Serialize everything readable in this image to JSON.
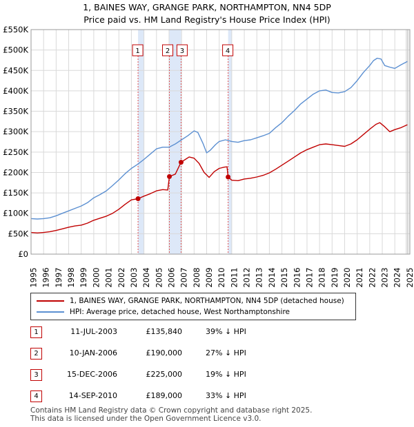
{
  "title_line1": "1, BAINES WAY, GRANGE PARK, NORTHAMPTON, NN4 5DP",
  "title_line2": "Price paid vs. HM Land Registry's House Price Index (HPI)",
  "colors": {
    "property": "#c00000",
    "hpi": "#5b8fd1",
    "sale_band": "#dde8f8",
    "marker_line": "#e05050"
  },
  "chart_data": {
    "type": "line",
    "ylim": [
      0,
      550000
    ],
    "xlim": [
      1995.0,
      2025.2
    ],
    "yticks": [
      0,
      50000,
      100000,
      150000,
      200000,
      250000,
      300000,
      350000,
      400000,
      450000,
      500000,
      550000
    ],
    "ytick_labels": [
      "£0",
      "£50K",
      "£100K",
      "£150K",
      "£200K",
      "£250K",
      "£300K",
      "£350K",
      "£400K",
      "£450K",
      "£500K",
      "£550K"
    ],
    "xtick_labels": [
      "1995",
      "1996",
      "1997",
      "1998",
      "1999",
      "2000",
      "2001",
      "2002",
      "2003",
      "2004",
      "2005",
      "2006",
      "2007",
      "2008",
      "2009",
      "2010",
      "2011",
      "2012",
      "2013",
      "2014",
      "2015",
      "2016",
      "2017",
      "2018",
      "2019",
      "2020",
      "2021",
      "2022",
      "2023",
      "2024",
      "2025"
    ],
    "grid": true,
    "series": [
      {
        "name": "1, BAINES WAY, GRANGE PARK, NORTHAMPTON, NN4 5DP (detached house)",
        "x": [
          1995.0,
          1995.5,
          1996.0,
          1996.5,
          1997.0,
          1997.5,
          1998.0,
          1998.5,
          1999.0,
          1999.5,
          2000.0,
          2000.5,
          2001.0,
          2001.5,
          2002.0,
          2002.5,
          2003.0,
          2003.53,
          2004.0,
          2004.5,
          2005.0,
          2005.5,
          2005.9,
          2006.03,
          2006.5,
          2006.96,
          2007.3,
          2007.6,
          2008.0,
          2008.4,
          2008.8,
          2009.2,
          2009.6,
          2010.0,
          2010.4,
          2010.62,
          2010.71,
          2011.0,
          2011.5,
          2012.0,
          2012.5,
          2013.0,
          2013.5,
          2014.0,
          2014.5,
          2015.0,
          2015.5,
          2016.0,
          2016.5,
          2017.0,
          2017.5,
          2018.0,
          2018.5,
          2019.0,
          2019.5,
          2020.0,
          2020.5,
          2021.0,
          2021.5,
          2022.0,
          2022.5,
          2022.8,
          2023.2,
          2023.6,
          2024.0,
          2024.5,
          2025.0
        ],
        "values": [
          53000,
          52000,
          53000,
          55000,
          58000,
          62000,
          66000,
          69000,
          71000,
          76000,
          83000,
          88000,
          93000,
          100000,
          110000,
          122000,
          133000,
          135840,
          142000,
          148000,
          155000,
          158000,
          157000,
          190000,
          196000,
          225000,
          232000,
          238000,
          235000,
          222000,
          200000,
          188000,
          202000,
          210000,
          213000,
          214000,
          189000,
          181000,
          180000,
          184000,
          186000,
          189000,
          193000,
          199000,
          208000,
          218000,
          228000,
          238000,
          248000,
          256000,
          262000,
          268000,
          270000,
          268000,
          266000,
          264000,
          270000,
          280000,
          293000,
          306000,
          318000,
          322000,
          312000,
          300000,
          305000,
          310000,
          317000
        ]
      },
      {
        "name": "HPI: Average price, detached house, West Northamptonshire",
        "x": [
          1995.0,
          1995.5,
          1996.0,
          1996.5,
          1997.0,
          1997.5,
          1998.0,
          1998.5,
          1999.0,
          1999.5,
          2000.0,
          2000.5,
          2001.0,
          2001.5,
          2002.0,
          2002.5,
          2003.0,
          2003.5,
          2004.0,
          2004.5,
          2005.0,
          2005.5,
          2006.0,
          2006.5,
          2007.0,
          2007.5,
          2008.0,
          2008.3,
          2008.7,
          2009.0,
          2009.3,
          2009.7,
          2010.0,
          2010.5,
          2011.0,
          2011.5,
          2012.0,
          2012.5,
          2013.0,
          2013.5,
          2014.0,
          2014.5,
          2015.0,
          2015.5,
          2016.0,
          2016.5,
          2017.0,
          2017.5,
          2018.0,
          2018.5,
          2019.0,
          2019.5,
          2020.0,
          2020.5,
          2021.0,
          2021.5,
          2022.0,
          2022.3,
          2022.6,
          2022.9,
          2023.2,
          2023.6,
          2024.0,
          2024.5,
          2025.0
        ],
        "values": [
          87000,
          86000,
          87000,
          89000,
          94000,
          100000,
          106000,
          112000,
          118000,
          126000,
          138000,
          146000,
          155000,
          168000,
          182000,
          197000,
          210000,
          220000,
          232000,
          245000,
          258000,
          262000,
          262000,
          270000,
          280000,
          290000,
          302000,
          298000,
          272000,
          248000,
          255000,
          268000,
          276000,
          280000,
          276000,
          274000,
          278000,
          280000,
          285000,
          290000,
          296000,
          310000,
          322000,
          338000,
          352000,
          368000,
          380000,
          392000,
          400000,
          402000,
          396000,
          395000,
          398000,
          408000,
          425000,
          445000,
          462000,
          474000,
          480000,
          478000,
          462000,
          458000,
          455000,
          464000,
          472000
        ]
      }
    ],
    "sale_bands": [
      [
        2003.53,
        2004.0
      ],
      [
        2006.03,
        2006.96
      ],
      [
        2010.71,
        2011.0
      ]
    ],
    "sales": [
      {
        "label": "1",
        "x": 2003.53,
        "value": 135840
      },
      {
        "label": "2",
        "x": 2006.03,
        "value": 190000
      },
      {
        "label": "3",
        "x": 2006.96,
        "value": 225000
      },
      {
        "label": "4",
        "x": 2010.71,
        "value": 189000
      }
    ]
  },
  "legend": {
    "property": "1, BAINES WAY, GRANGE PARK, NORTHAMPTON, NN4 5DP (detached house)",
    "hpi": "HPI: Average price, detached house, West Northamptonshire"
  },
  "sales_table": [
    {
      "num": "1",
      "date": "11-JUL-2003",
      "price": "£135,840",
      "hpi": "39% ↓ HPI"
    },
    {
      "num": "2",
      "date": "10-JAN-2006",
      "price": "£190,000",
      "hpi": "27% ↓ HPI"
    },
    {
      "num": "3",
      "date": "15-DEC-2006",
      "price": "£225,000",
      "hpi": "19% ↓ HPI"
    },
    {
      "num": "4",
      "date": "14-SEP-2010",
      "price": "£189,000",
      "hpi": "33% ↓ HPI"
    }
  ],
  "footer_line1": "Contains HM Land Registry data © Crown copyright and database right 2025.",
  "footer_line2": "This data is licensed under the Open Government Licence v3.0."
}
